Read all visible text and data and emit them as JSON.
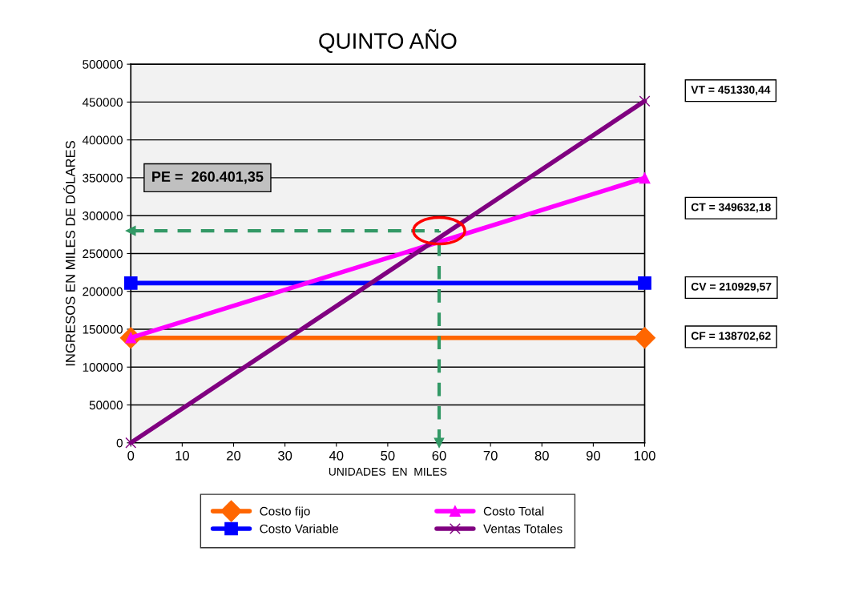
{
  "chart_data": {
    "type": "line",
    "title": "QUINTO AÑO",
    "xlabel": "UNIDADES  EN  MILES",
    "ylabel": "INGRESOS EN MILES DE DÓLARES",
    "x": [
      0,
      100
    ],
    "series": [
      {
        "name": "Costo fijo",
        "color": "#ff6600",
        "marker": "diamond",
        "values": [
          138702.62,
          138702.62
        ]
      },
      {
        "name": "Costo Variable",
        "color": "#0000ff",
        "marker": "square",
        "values": [
          210929.57,
          210929.57
        ]
      },
      {
        "name": "Costo Total",
        "color": "#ff00ff",
        "marker": "triangle",
        "values": [
          138702.62,
          349632.18
        ]
      },
      {
        "name": "Ventas Totales",
        "color": "#800080",
        "marker": "cross",
        "values": [
          0,
          451330.44
        ]
      }
    ],
    "xlim": [
      0,
      100
    ],
    "xticks": [
      0,
      10,
      20,
      30,
      40,
      50,
      60,
      70,
      80,
      90,
      100
    ],
    "ylim": [
      0,
      500000
    ],
    "yticks": [
      0,
      50000,
      100000,
      150000,
      200000,
      250000,
      300000,
      350000,
      400000,
      450000,
      500000
    ],
    "grid": "y",
    "legend": "bottom",
    "ref_lines": [
      {
        "axis": "y",
        "value": 280000,
        "color": "#339966",
        "line_style": "dashed"
      },
      {
        "axis": "x",
        "value": 60,
        "color": "#339966",
        "line_style": "dashed"
      }
    ],
    "annotations": [
      "PE =  260.401,35",
      "VT = 451330,44",
      "CT = 349632,18",
      "CV = 210929,57",
      "CF = 138702,62"
    ]
  }
}
